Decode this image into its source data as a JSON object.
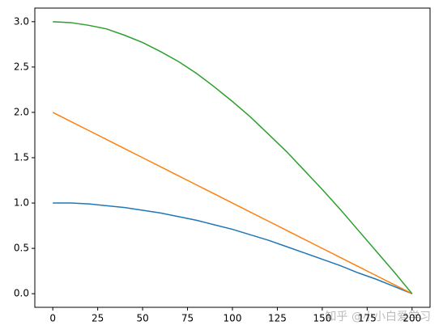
{
  "chart_data": {
    "type": "line",
    "x": [
      0,
      10,
      20,
      30,
      40,
      50,
      60,
      70,
      80,
      90,
      100,
      110,
      120,
      130,
      140,
      150,
      160,
      170,
      180,
      190,
      200
    ],
    "series": [
      {
        "color": "#1f77b4",
        "values": [
          1.0,
          1.0,
          0.99,
          0.97,
          0.95,
          0.92,
          0.89,
          0.85,
          0.81,
          0.76,
          0.71,
          0.65,
          0.59,
          0.52,
          0.45,
          0.38,
          0.31,
          0.23,
          0.16,
          0.08,
          0.0
        ]
      },
      {
        "color": "#ff7f0e",
        "values": [
          2.0,
          1.9,
          1.8,
          1.7,
          1.6,
          1.5,
          1.4,
          1.3,
          1.2,
          1.1,
          1.0,
          0.9,
          0.8,
          0.7,
          0.6,
          0.5,
          0.4,
          0.3,
          0.2,
          0.1,
          0.0
        ]
      },
      {
        "color": "#2ca02c",
        "values": [
          3.0,
          2.99,
          2.96,
          2.92,
          2.85,
          2.77,
          2.67,
          2.56,
          2.43,
          2.28,
          2.12,
          1.95,
          1.76,
          1.57,
          1.36,
          1.15,
          0.93,
          0.7,
          0.47,
          0.24,
          0.0
        ]
      }
    ],
    "xlim": [
      -10,
      210
    ],
    "ylim": [
      -0.15,
      3.15
    ],
    "xticks": [
      0,
      25,
      50,
      75,
      100,
      125,
      150,
      175,
      200
    ],
    "yticks": [
      {
        "value": 0,
        "label": "0.0"
      },
      0.5,
      {
        "value": 1,
        "label": "1.0"
      },
      1.5,
      {
        "value": 2,
        "label": "2.0"
      },
      2.5,
      {
        "value": 3,
        "label": "3.0"
      }
    ],
    "grid": false,
    "watermark": "知乎 @小小白爱学习"
  }
}
